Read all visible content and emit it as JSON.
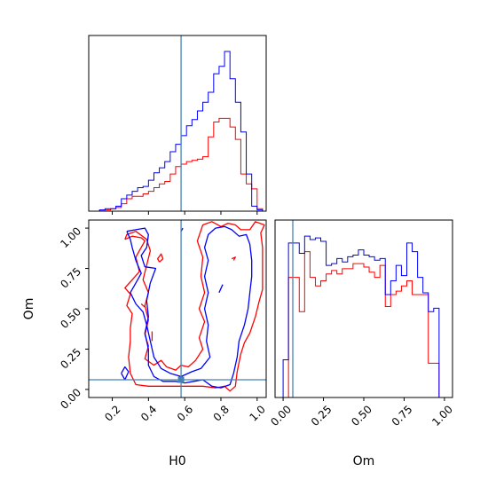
{
  "chart_data": {
    "type": "corner",
    "parameters": [
      "H0",
      "Om"
    ],
    "truth": {
      "H0": 0.58,
      "Om": 0.06
    },
    "colors": {
      "red": "#ff0000",
      "blue": "#0000ff",
      "truth": "#4682b4"
    },
    "panels": [
      {
        "id": "hist-H0",
        "type": "histogram",
        "xlim": [
          0.07,
          1.05
        ],
        "bin_edges": [
          0.13,
          0.16,
          0.19,
          0.22,
          0.25,
          0.28,
          0.31,
          0.34,
          0.37,
          0.4,
          0.43,
          0.46,
          0.49,
          0.52,
          0.55,
          0.58,
          0.61,
          0.64,
          0.67,
          0.7,
          0.73,
          0.76,
          0.79,
          0.82,
          0.85,
          0.88,
          0.91,
          0.94,
          0.97,
          1.0,
          1.03
        ],
        "series": [
          {
            "color": "red",
            "values": [
              1,
              1,
              2,
              3,
              6,
              10,
              12,
              12,
              14,
              16,
              19,
              22,
              24,
              30,
              36,
              38,
              40,
              41,
              42,
              44,
              60,
              72,
              75,
              75,
              68,
              58,
              30,
              22,
              18,
              2
            ]
          },
          {
            "color": "blue",
            "values": [
              1,
              2,
              2,
              4,
              10,
              13,
              16,
              19,
              20,
              25,
              31,
              35,
              40,
              48,
              54,
              61,
              69,
              74,
              81,
              88,
              96,
              111,
              117,
              129,
              107,
              88,
              64,
              30,
              4,
              1
            ]
          }
        ]
      },
      {
        "id": "contour-H0-Om",
        "type": "contour",
        "xlabel": "H0",
        "ylabel": "Om",
        "xlim": [
          0.07,
          1.05
        ],
        "ylim": [
          -0.05,
          1.05
        ],
        "xticks": [
          0.2,
          0.4,
          0.6,
          0.8,
          1.0
        ],
        "xtick_labels": [
          "0.2",
          "0.4",
          "0.6",
          "0.8",
          "1.0"
        ],
        "yticks": [
          0.0,
          0.25,
          0.5,
          0.75,
          1.0
        ],
        "ytick_labels": [
          "0.00",
          "0.25",
          "0.50",
          "0.75",
          "1.00"
        ],
        "contours": [
          {
            "color": "red",
            "points": [
              [
                0.27,
                0.93
              ],
              [
                0.31,
                0.95
              ],
              [
                0.36,
                0.94
              ],
              [
                0.38,
                0.92
              ],
              [
                0.35,
                0.86
              ],
              [
                0.33,
                0.82
              ],
              [
                0.35,
                0.73
              ],
              [
                0.31,
                0.68
              ],
              [
                0.27,
                0.63
              ],
              [
                0.3,
                0.59
              ],
              [
                0.28,
                0.52
              ],
              [
                0.31,
                0.47
              ],
              [
                0.3,
                0.38
              ],
              [
                0.3,
                0.3
              ],
              [
                0.29,
                0.2
              ],
              [
                0.3,
                0.1
              ],
              [
                0.33,
                0.03
              ],
              [
                0.4,
                0.02
              ],
              [
                0.5,
                0.02
              ],
              [
                0.6,
                0.02
              ],
              [
                0.7,
                0.02
              ],
              [
                0.77,
                0.01
              ],
              [
                0.82,
                0.02
              ],
              [
                0.85,
                -0.01
              ],
              [
                0.88,
                0.02
              ],
              [
                0.89,
                0.11
              ],
              [
                0.91,
                0.22
              ],
              [
                0.93,
                0.29
              ],
              [
                0.96,
                0.35
              ],
              [
                0.99,
                0.45
              ],
              [
                1.01,
                0.54
              ],
              [
                1.03,
                0.62
              ],
              [
                1.03,
                0.75
              ],
              [
                1.03,
                0.88
              ],
              [
                1.02,
                0.97
              ],
              [
                1.04,
                1.02
              ],
              [
                0.99,
                1.04
              ],
              [
                0.96,
                0.99
              ],
              [
                0.91,
                0.99
              ],
              [
                0.88,
                1.02
              ],
              [
                0.84,
                1.03
              ],
              [
                0.8,
                1.01
              ],
              [
                0.75,
                1.04
              ],
              [
                0.7,
                1.02
              ],
              [
                0.67,
                0.92
              ],
              [
                0.7,
                0.82
              ],
              [
                0.69,
                0.7
              ],
              [
                0.71,
                0.6
              ],
              [
                0.68,
                0.5
              ],
              [
                0.71,
                0.42
              ],
              [
                0.68,
                0.32
              ],
              [
                0.7,
                0.25
              ],
              [
                0.66,
                0.18
              ],
              [
                0.62,
                0.14
              ],
              [
                0.58,
                0.15
              ],
              [
                0.55,
                0.12
              ],
              [
                0.5,
                0.14
              ],
              [
                0.47,
                0.18
              ],
              [
                0.43,
                0.15
              ],
              [
                0.38,
                0.19
              ],
              [
                0.4,
                0.27
              ],
              [
                0.38,
                0.34
              ],
              [
                0.4,
                0.43
              ],
              [
                0.38,
                0.52
              ],
              [
                0.4,
                0.6
              ],
              [
                0.37,
                0.68
              ],
              [
                0.39,
                0.77
              ],
              [
                0.41,
                0.86
              ],
              [
                0.39,
                0.93
              ],
              [
                0.33,
                0.98
              ],
              [
                0.28,
                0.96
              ],
              [
                0.27,
                0.93
              ]
            ]
          },
          {
            "color": "blue",
            "points": [
              [
                0.28,
                0.98
              ],
              [
                0.33,
                0.99
              ],
              [
                0.38,
                1.0
              ],
              [
                0.4,
                0.96
              ],
              [
                0.39,
                0.88
              ],
              [
                0.36,
                0.83
              ],
              [
                0.38,
                0.76
              ],
              [
                0.44,
                0.75
              ],
              [
                0.41,
                0.66
              ],
              [
                0.39,
                0.55
              ],
              [
                0.4,
                0.45
              ],
              [
                0.38,
                0.35
              ],
              [
                0.4,
                0.25
              ],
              [
                0.4,
                0.15
              ],
              [
                0.43,
                0.08
              ],
              [
                0.48,
                0.05
              ],
              [
                0.55,
                0.05
              ],
              [
                0.6,
                0.04
              ],
              [
                0.65,
                0.05
              ],
              [
                0.7,
                0.06
              ],
              [
                0.75,
                0.02
              ],
              [
                0.8,
                0.01
              ],
              [
                0.85,
                0.03
              ],
              [
                0.87,
                0.1
              ],
              [
                0.89,
                0.2
              ],
              [
                0.9,
                0.3
              ],
              [
                0.93,
                0.4
              ],
              [
                0.95,
                0.5
              ],
              [
                0.96,
                0.6
              ],
              [
                0.97,
                0.7
              ],
              [
                0.97,
                0.8
              ],
              [
                0.96,
                0.9
              ],
              [
                0.94,
                0.96
              ],
              [
                0.9,
                0.95
              ],
              [
                0.86,
                0.99
              ],
              [
                0.82,
                1.01
              ],
              [
                0.77,
                1.0
              ],
              [
                0.73,
                0.96
              ],
              [
                0.71,
                0.88
              ],
              [
                0.73,
                0.8
              ],
              [
                0.71,
                0.7
              ],
              [
                0.73,
                0.6
              ],
              [
                0.71,
                0.5
              ],
              [
                0.73,
                0.4
              ],
              [
                0.72,
                0.3
              ],
              [
                0.74,
                0.2
              ],
              [
                0.69,
                0.13
              ],
              [
                0.64,
                0.11
              ],
              [
                0.58,
                0.08
              ],
              [
                0.52,
                0.1
              ],
              [
                0.47,
                0.13
              ],
              [
                0.43,
                0.2
              ],
              [
                0.41,
                0.3
              ],
              [
                0.39,
                0.4
              ],
              [
                0.37,
                0.48
              ],
              [
                0.33,
                0.53
              ],
              [
                0.3,
                0.6
              ],
              [
                0.33,
                0.66
              ],
              [
                0.36,
                0.72
              ],
              [
                0.33,
                0.8
              ],
              [
                0.31,
                0.88
              ],
              [
                0.3,
                0.93
              ],
              [
                0.28,
                0.98
              ]
            ]
          },
          {
            "color": "blue",
            "points": [
              [
                0.25,
                0.1
              ],
              [
                0.27,
                0.14
              ],
              [
                0.29,
                0.11
              ],
              [
                0.27,
                0.06
              ],
              [
                0.25,
                0.1
              ]
            ]
          },
          {
            "color": "red",
            "points": [
              [
                0.46,
                0.79
              ],
              [
                0.48,
                0.81
              ],
              [
                0.47,
                0.84
              ],
              [
                0.45,
                0.81
              ],
              [
                0.46,
                0.79
              ]
            ]
          },
          {
            "color": "red",
            "points": [
              [
                0.86,
                0.81
              ],
              [
                0.88,
                0.82
              ],
              [
                0.87,
                0.8
              ]
            ]
          },
          {
            "color": "red",
            "points": [
              [
                0.36,
                0.53
              ],
              [
                0.38,
                0.51
              ]
            ]
          },
          {
            "color": "red",
            "points": [
              [
                0.42,
                0.3
              ],
              [
                0.42,
                0.36
              ]
            ]
          },
          {
            "color": "blue",
            "points": [
              [
                0.58,
                0.98
              ],
              [
                0.59,
                1.0
              ]
            ]
          },
          {
            "color": "blue",
            "points": [
              [
                0.79,
                0.6
              ],
              [
                0.81,
                0.65
              ]
            ]
          }
        ]
      },
      {
        "id": "hist-Om",
        "type": "histogram",
        "xlabel": "Om",
        "xlim": [
          -0.05,
          1.05
        ],
        "xticks": [
          0.0,
          0.25,
          0.5,
          0.75,
          1.0
        ],
        "xtick_labels": [
          "0.00",
          "0.25",
          "0.50",
          "0.75",
          "1.00"
        ],
        "bin_edges": [
          0.0,
          0.0333,
          0.0667,
          0.1,
          0.1333,
          0.1667,
          0.2,
          0.2333,
          0.2667,
          0.3,
          0.3333,
          0.3667,
          0.4,
          0.4333,
          0.4667,
          0.5,
          0.5333,
          0.5667,
          0.6,
          0.6333,
          0.6667,
          0.7,
          0.7333,
          0.7667,
          0.8,
          0.8333,
          0.8667,
          0.9,
          0.9333,
          0.9667,
          1.0
        ],
        "series": [
          {
            "color": "red",
            "values": [
              0,
              70,
              70,
              50,
              85,
              70,
              65,
              68,
              72,
              74,
              72,
              75,
              75,
              78,
              78,
              76,
              73,
              70,
              77,
              53,
              60,
              62,
              65,
              68,
              60,
              60,
              60,
              20,
              20,
              0
            ]
          },
          {
            "color": "blue",
            "values": [
              22,
              90,
              90,
              84,
              94,
              92,
              93,
              91,
              77,
              78,
              81,
              79,
              82,
              83,
              86,
              83,
              82,
              80,
              81,
              60,
              68,
              77,
              71,
              90,
              85,
              70,
              61,
              50,
              52,
              0
            ]
          }
        ]
      }
    ]
  }
}
